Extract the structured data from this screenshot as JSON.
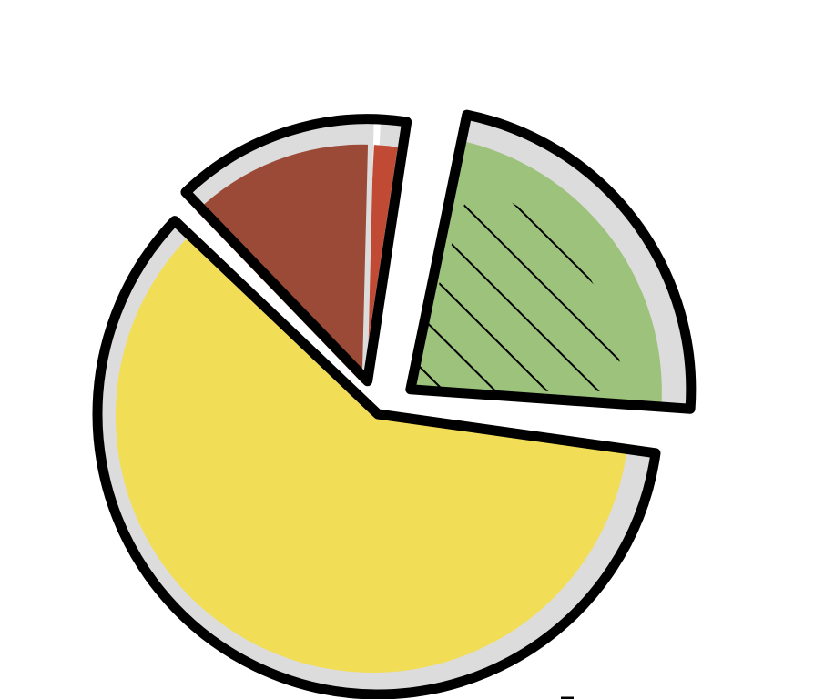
{
  "chart_data": {
    "type": "pie",
    "title": "",
    "slices": [
      {
        "value": 24,
        "color": "#9dc27c",
        "hatched": true,
        "exploded": true
      },
      {
        "value": 2,
        "color": "#c14a34",
        "hatched": false,
        "exploded": true,
        "group": "top"
      },
      {
        "value": 13,
        "color": "#9a4a37",
        "hatched": false,
        "exploded": true,
        "group": "top"
      },
      {
        "value": 61,
        "color": "#f2dd57",
        "hatched": false,
        "exploded": false
      }
    ],
    "shadow_color": "#dcdcdc",
    "outline_color": "#000000"
  }
}
